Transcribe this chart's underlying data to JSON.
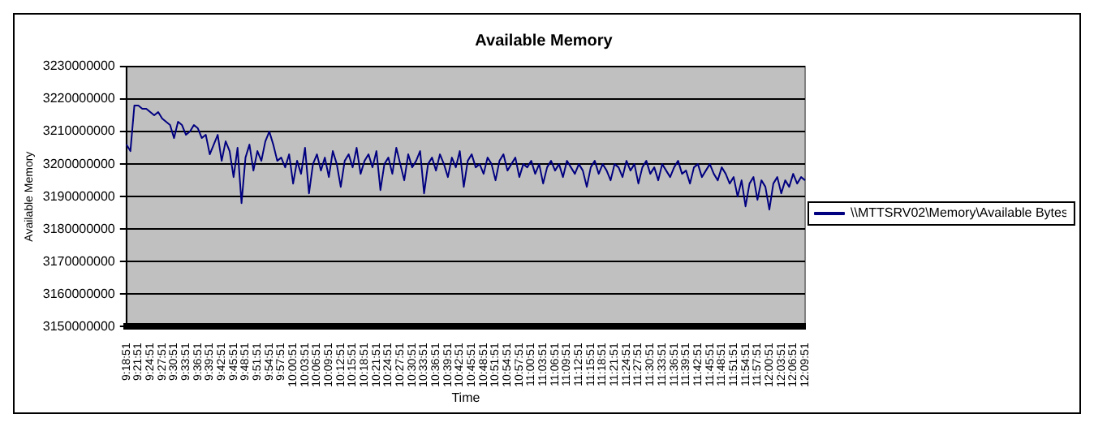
{
  "chart_data": {
    "type": "line",
    "title": "Available Memory",
    "xlabel": "Time",
    "ylabel": "Available Memory",
    "categories": [
      "9:18:51",
      null,
      null,
      "9:21:51",
      null,
      null,
      "9:24:51",
      null,
      null,
      "9:27:51",
      null,
      null,
      "9:30:51",
      null,
      null,
      "9:33:51",
      null,
      null,
      "9:36:51",
      null,
      null,
      "9:39:51",
      null,
      null,
      "9:42:51",
      null,
      null,
      "9:45:51",
      null,
      null,
      "9:48:51",
      null,
      null,
      "9:51:51",
      null,
      null,
      "9:54:51",
      null,
      null,
      "9:57:51",
      null,
      null,
      "10:00:51",
      null,
      null,
      "10:03:51",
      null,
      null,
      "10:06:51",
      null,
      null,
      "10:09:51",
      null,
      null,
      "10:12:51",
      null,
      null,
      "10:15:51",
      null,
      null,
      "10:18:51",
      null,
      null,
      "10:21:51",
      null,
      null,
      "10:24:51",
      null,
      null,
      "10:27:51",
      null,
      null,
      "10:30:51",
      null,
      null,
      "10:33:51",
      null,
      null,
      "10:36:51",
      null,
      null,
      "10:39:51",
      null,
      null,
      "10:42:51",
      null,
      null,
      "10:45:51",
      null,
      null,
      "10:48:51",
      null,
      null,
      "10:51:51",
      null,
      null,
      "10:54:51",
      null,
      null,
      "10:57:51",
      null,
      null,
      "11:00:51",
      null,
      null,
      "11:03:51",
      null,
      null,
      "11:06:51",
      null,
      null,
      "11:09:51",
      null,
      null,
      "11:12:51",
      null,
      null,
      "11:15:51",
      null,
      null,
      "11:18:51",
      null,
      null,
      "11:21:51",
      null,
      null,
      "11:24:51",
      null,
      null,
      "11:27:51",
      null,
      null,
      "11:30:51",
      null,
      null,
      "11:33:51",
      null,
      null,
      "11:36:51",
      null,
      null,
      "11:39:51",
      null,
      null,
      "11:42:51",
      null,
      null,
      "11:45:51",
      null,
      null,
      "11:48:51",
      null,
      null,
      "11:51:51",
      null,
      null,
      "11:54:51",
      null,
      null,
      "11:57:51",
      null,
      null,
      "12:00:51",
      null,
      null,
      "12:03:51",
      null,
      null,
      "12:06:51",
      null,
      null,
      "12:09:51"
    ],
    "series": [
      {
        "name": "\\\\MTTSRV02\\Memory\\Available Bytes",
        "color": "#000080",
        "values": [
          3206000000,
          3204000000,
          3218000000,
          3218000000,
          3217000000,
          3217000000,
          3216000000,
          3215000000,
          3216000000,
          3214000000,
          3213000000,
          3212000000,
          3208000000,
          3213000000,
          3212000000,
          3209000000,
          3210000000,
          3212000000,
          3211000000,
          3208000000,
          3209000000,
          3203000000,
          3206000000,
          3209000000,
          3201000000,
          3207000000,
          3204000000,
          3196000000,
          3205000000,
          3188000000,
          3202000000,
          3206000000,
          3198000000,
          3204000000,
          3201000000,
          3207000000,
          3210000000,
          3206000000,
          3201000000,
          3202000000,
          3199000000,
          3203000000,
          3194000000,
          3201000000,
          3197000000,
          3205000000,
          3191000000,
          3200000000,
          3203000000,
          3198000000,
          3202000000,
          3196000000,
          3204000000,
          3200000000,
          3193000000,
          3201000000,
          3203000000,
          3199000000,
          3205000000,
          3197000000,
          3201000000,
          3203000000,
          3199000000,
          3204000000,
          3192000000,
          3200000000,
          3202000000,
          3197000000,
          3205000000,
          3200000000,
          3195000000,
          3203000000,
          3199000000,
          3201000000,
          3204000000,
          3191000000,
          3200000000,
          3202000000,
          3198000000,
          3203000000,
          3200000000,
          3196000000,
          3202000000,
          3199000000,
          3204000000,
          3193000000,
          3201000000,
          3203000000,
          3199000000,
          3200000000,
          3197000000,
          3202000000,
          3200000000,
          3195000000,
          3201000000,
          3203000000,
          3198000000,
          3200000000,
          3202000000,
          3196000000,
          3200000000,
          3199000000,
          3201000000,
          3197000000,
          3200000000,
          3194000000,
          3199000000,
          3201000000,
          3198000000,
          3200000000,
          3196000000,
          3201000000,
          3199000000,
          3197000000,
          3200000000,
          3198000000,
          3193000000,
          3199000000,
          3201000000,
          3197000000,
          3200000000,
          3198000000,
          3195000000,
          3200000000,
          3199000000,
          3196000000,
          3201000000,
          3198000000,
          3200000000,
          3194000000,
          3199000000,
          3201000000,
          3197000000,
          3199000000,
          3195000000,
          3200000000,
          3198000000,
          3196000000,
          3199000000,
          3201000000,
          3197000000,
          3198000000,
          3194000000,
          3199000000,
          3200000000,
          3196000000,
          3198000000,
          3200000000,
          3197000000,
          3195000000,
          3199000000,
          3197000000,
          3194000000,
          3196000000,
          3190000000,
          3195000000,
          3187000000,
          3194000000,
          3196000000,
          3189000000,
          3195000000,
          3193000000,
          3186000000,
          3194000000,
          3196000000,
          3191000000,
          3195000000,
          3193000000,
          3197000000,
          3194000000,
          3196000000,
          3195000000
        ]
      }
    ],
    "ylim": [
      3150000000,
      3230000000
    ],
    "yticks": [
      3150000000,
      3160000000,
      3170000000,
      3180000000,
      3190000000,
      3200000000,
      3210000000,
      3220000000,
      3230000000
    ],
    "grid": "y",
    "legend": "right",
    "marker": "none",
    "line_style": "solid"
  }
}
